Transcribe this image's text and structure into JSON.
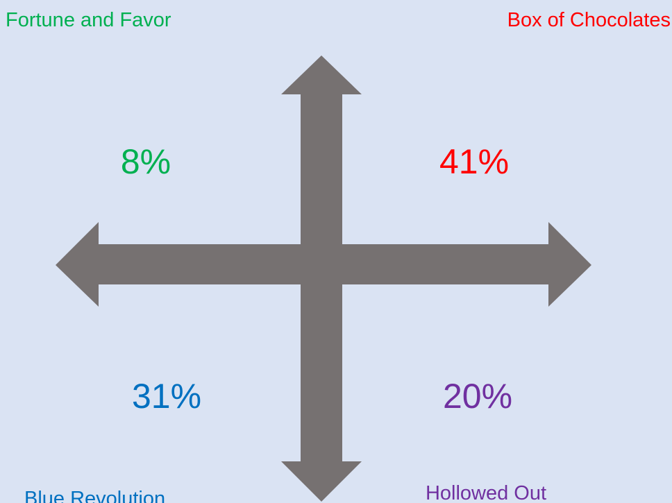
{
  "quadrants": [
    {
      "name": "Fortune and Favor",
      "value": "8%"
    },
    {
      "name": "Box of Chocolates",
      "value": "41%"
    },
    {
      "name": "Blue Revolution",
      "value": "31%"
    },
    {
      "name": "Hollowed Out",
      "value": "20%"
    }
  ]
}
